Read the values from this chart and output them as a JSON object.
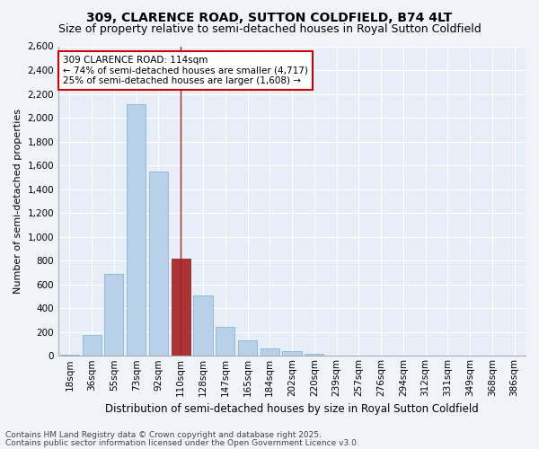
{
  "title": "309, CLARENCE ROAD, SUTTON COLDFIELD, B74 4LT",
  "subtitle": "Size of property relative to semi-detached houses in Royal Sutton Coldfield",
  "xlabel": "Distribution of semi-detached houses by size in Royal Sutton Coldfield",
  "ylabel": "Number of semi-detached properties",
  "annotation_title": "309 CLARENCE ROAD: 114sqm",
  "annotation_line1": "← 74% of semi-detached houses are smaller (4,717)",
  "annotation_line2": "25% of semi-detached houses are larger (1,608) →",
  "footer1": "Contains HM Land Registry data © Crown copyright and database right 2025.",
  "footer2": "Contains public sector information licensed under the Open Government Licence v3.0.",
  "categories": [
    "18sqm",
    "36sqm",
    "55sqm",
    "73sqm",
    "92sqm",
    "110sqm",
    "128sqm",
    "147sqm",
    "165sqm",
    "184sqm",
    "202sqm",
    "220sqm",
    "239sqm",
    "257sqm",
    "276sqm",
    "294sqm",
    "312sqm",
    "331sqm",
    "349sqm",
    "368sqm",
    "386sqm"
  ],
  "values": [
    10,
    175,
    690,
    2110,
    1545,
    820,
    510,
    245,
    130,
    65,
    40,
    15,
    5,
    5,
    5,
    0,
    0,
    5,
    0,
    5,
    0
  ],
  "bar_color": "#b8d0e8",
  "bar_edge_color": "#7aaed0",
  "highlight_bar_index": 5,
  "highlight_bar_color": "#aa3333",
  "highlight_bar_edge_color": "#881111",
  "vline_color": "#aa2222",
  "ylim": [
    0,
    2600
  ],
  "yticks": [
    0,
    200,
    400,
    600,
    800,
    1000,
    1200,
    1400,
    1600,
    1800,
    2000,
    2200,
    2400,
    2600
  ],
  "background_color": "#f0f4fa",
  "plot_background_color": "#e8eef8",
  "grid_color": "#ffffff",
  "annotation_box_color": "#ffffff",
  "annotation_box_edge": "#cc0000",
  "title_fontsize": 10,
  "subtitle_fontsize": 9,
  "xlabel_fontsize": 8.5,
  "ylabel_fontsize": 8,
  "tick_fontsize": 7.5,
  "annotation_fontsize": 7.5,
  "footer_fontsize": 6.5
}
